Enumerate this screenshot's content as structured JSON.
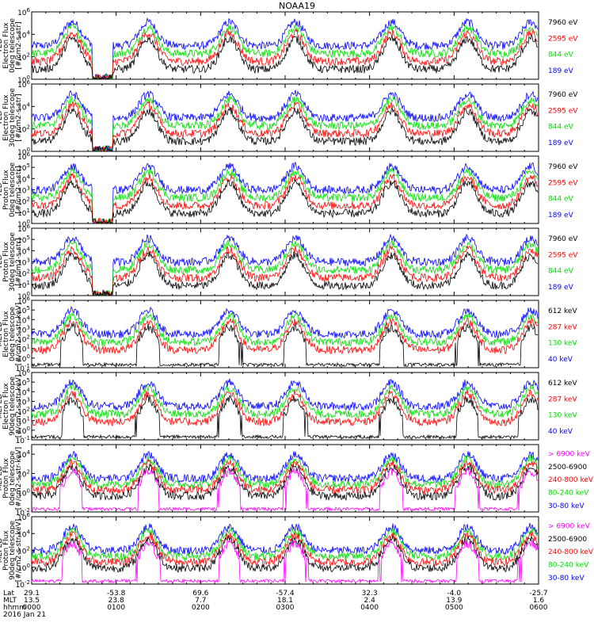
{
  "title": "NOAA19",
  "colors": {
    "black": "#000000",
    "red": "#ff0000",
    "green": "#00dd00",
    "blue": "#0000ff",
    "magenta": "#ff00ff"
  },
  "chart_data": [
    {
      "type": "line",
      "ylabel": [
        "TED",
        "Electron Flux",
        "0deg telescope",
        "[#/cm2-s-str]"
      ],
      "ylog": true,
      "yticks": [
        "10^0",
        "10^2",
        "10^4",
        "10^6"
      ],
      "ylim_exp": [
        0,
        6
      ],
      "series": [
        {
          "name": "7960 eV",
          "color": "#000000"
        },
        {
          "name": "2595 eV",
          "color": "#ff0000"
        },
        {
          "name": "844 eV",
          "color": "#00dd00"
        },
        {
          "name": "189 eV",
          "color": "#0000ff"
        }
      ]
    },
    {
      "type": "line",
      "ylabel": [
        "TED",
        "Electron Flux",
        "30deg telescope",
        "[#/cm2-s-str]"
      ],
      "ylog": true,
      "yticks": [
        "10^0",
        "10^2",
        "10^4",
        "10^6"
      ],
      "ylim_exp": [
        0,
        6
      ],
      "series": [
        {
          "name": "7960 eV",
          "color": "#000000"
        },
        {
          "name": "2595 eV",
          "color": "#ff0000"
        },
        {
          "name": "844 eV",
          "color": "#00dd00"
        },
        {
          "name": "189 eV",
          "color": "#0000ff"
        }
      ]
    },
    {
      "type": "line",
      "ylabel": [
        "TED",
        "Proton Flux",
        "0deg telescope",
        "[#/cm2-s-str]"
      ],
      "ylog": true,
      "yticks": [
        "10^0",
        "10^1",
        "10^2",
        "10^3",
        "10^4",
        "10^5",
        "10^6"
      ],
      "ylim_exp": [
        0,
        6
      ],
      "series": [
        {
          "name": "7960 eV",
          "color": "#000000"
        },
        {
          "name": "2595 eV",
          "color": "#ff0000"
        },
        {
          "name": "844 eV",
          "color": "#00dd00"
        },
        {
          "name": "189 eV",
          "color": "#0000ff"
        }
      ]
    },
    {
      "type": "line",
      "ylabel": [
        "TED",
        "Proton Flux",
        "30deg telescope",
        "[#/cm2-s-str]"
      ],
      "ylog": true,
      "yticks": [
        "10^0",
        "10^1",
        "10^2",
        "10^3",
        "10^4",
        "10^5",
        "10^6"
      ],
      "ylim_exp": [
        0,
        6
      ],
      "series": [
        {
          "name": "7960 eV",
          "color": "#000000"
        },
        {
          "name": "2595 eV",
          "color": "#ff0000"
        },
        {
          "name": "844 eV",
          "color": "#00dd00"
        },
        {
          "name": "189 eV",
          "color": "#0000ff"
        }
      ]
    },
    {
      "type": "line",
      "ylabel": [
        "MEPED",
        "Electron Flux",
        "0deg telescope",
        "[#/cm2-s-str-keV]"
      ],
      "ylog": true,
      "yticks": [
        "10^-1",
        "10^0",
        "10^1",
        "10^2",
        "10^3",
        "10^4",
        "10^5",
        "10^6"
      ],
      "ylim_exp": [
        -1,
        6
      ],
      "series": [
        {
          "name": "612 keV",
          "color": "#000000"
        },
        {
          "name": "287 keV",
          "color": "#ff0000"
        },
        {
          "name": "130 keV",
          "color": "#00dd00"
        },
        {
          "name": "40 keV",
          "color": "#0000ff"
        }
      ]
    },
    {
      "type": "line",
      "ylabel": [
        "MEPED",
        "Electron Flux",
        "90deg telescope",
        "[#/cm2-s-str-keV]"
      ],
      "ylog": true,
      "yticks": [
        "10^-1",
        "10^0",
        "10^1",
        "10^2",
        "10^3",
        "10^4",
        "10^5",
        "10^6"
      ],
      "ylim_exp": [
        -1,
        6
      ],
      "series": [
        {
          "name": "612 keV",
          "color": "#000000"
        },
        {
          "name": "287 keV",
          "color": "#ff0000"
        },
        {
          "name": "130 keV",
          "color": "#00dd00"
        },
        {
          "name": "40 keV",
          "color": "#0000ff"
        }
      ]
    },
    {
      "type": "line",
      "ylabel": [
        "MEPED",
        "Proton Flux",
        "0deg telescope",
        "[#/cm2-s-str-keV]"
      ],
      "ylog": true,
      "yticks": [
        "10^-2",
        "10^0",
        "10^2",
        "10^4"
      ],
      "ylim_exp": [
        -2,
        5
      ],
      "series": [
        {
          "name": "> 6900 keV",
          "color": "#ff00ff"
        },
        {
          "name": "2500-6900",
          "color": "#000000"
        },
        {
          "name": "240-800 keV",
          "color": "#ff0000"
        },
        {
          "name": "80-240 keV",
          "color": "#00dd00"
        },
        {
          "name": "30-80 keV",
          "color": "#0000ff"
        }
      ]
    },
    {
      "type": "line",
      "ylabel": [
        "MEPED",
        "Proton Flux",
        "90deg telescope",
        "[#/cm2-s-str-keV]"
      ],
      "ylog": true,
      "yticks": [
        "10^-2",
        "10^0",
        "10^2",
        "10^4",
        "10^6"
      ],
      "ylim_exp": [
        -2,
        6
      ],
      "series": [
        {
          "name": "> 6900 keV",
          "color": "#ff00ff"
        },
        {
          "name": "2500-6900",
          "color": "#000000"
        },
        {
          "name": "240-800 keV",
          "color": "#ff0000"
        },
        {
          "name": "80-240 keV",
          "color": "#00dd00"
        },
        {
          "name": "30-80 keV",
          "color": "#0000ff"
        }
      ]
    }
  ],
  "x_axis": {
    "row_labels": [
      "Lat",
      "MLT",
      "hhmm",
      "2016 Jan 21"
    ],
    "ticks": [
      {
        "lat": "29.1",
        "mlt": "13.5",
        "hhmm": "0000"
      },
      {
        "lat": "-53.8",
        "mlt": "23.8",
        "hhmm": "0100"
      },
      {
        "lat": "69.6",
        "mlt": "7.7",
        "hhmm": "0200"
      },
      {
        "lat": "-57.4",
        "mlt": "18.1",
        "hhmm": "0300"
      },
      {
        "lat": "32.3",
        "mlt": "2.4",
        "hhmm": "0400"
      },
      {
        "lat": "-4.0",
        "mlt": "13.9",
        "hhmm": "0500"
      },
      {
        "lat": "-25.7",
        "mlt": "1.6",
        "hhmm": "0600"
      }
    ]
  }
}
